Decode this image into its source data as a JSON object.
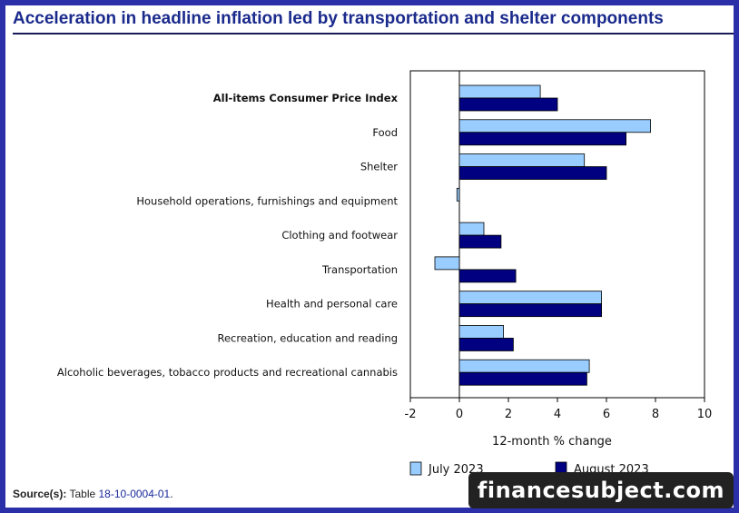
{
  "title": "Acceleration in headline inflation led by transportation and shelter components",
  "source": {
    "label": "Source(s):",
    "text": "Table",
    "link": "18-10-0004-01",
    "end": "."
  },
  "watermark": "financesubject.com",
  "colors": {
    "july": "#99ccff",
    "august": "#000080",
    "title": "#1a2a8c",
    "border": "#2b2fa8"
  },
  "chart_data": {
    "type": "bar",
    "orientation": "horizontal",
    "categories": [
      "All-items Consumer Price Index",
      "Food",
      "Shelter",
      "Household operations, furnishings and equipment",
      "Clothing and footwear",
      "Transportation",
      "Health and personal care",
      "Recreation, education and reading",
      "Alcoholic beverages, tobacco products and recreational cannabis"
    ],
    "bold_category_index": 0,
    "series": [
      {
        "name": "July 2023",
        "values": [
          3.3,
          7.8,
          5.1,
          -0.1,
          1.0,
          -1.0,
          5.8,
          1.8,
          5.3
        ]
      },
      {
        "name": "August 2023",
        "values": [
          4.0,
          6.8,
          6.0,
          0.0,
          1.7,
          2.3,
          5.8,
          2.2,
          5.2
        ]
      }
    ],
    "xlabel": "12-month % change",
    "xlim": [
      -2,
      10
    ],
    "xticks": [
      -2,
      0,
      2,
      4,
      6,
      8,
      10
    ],
    "grid": false,
    "legend_position": "bottom"
  }
}
